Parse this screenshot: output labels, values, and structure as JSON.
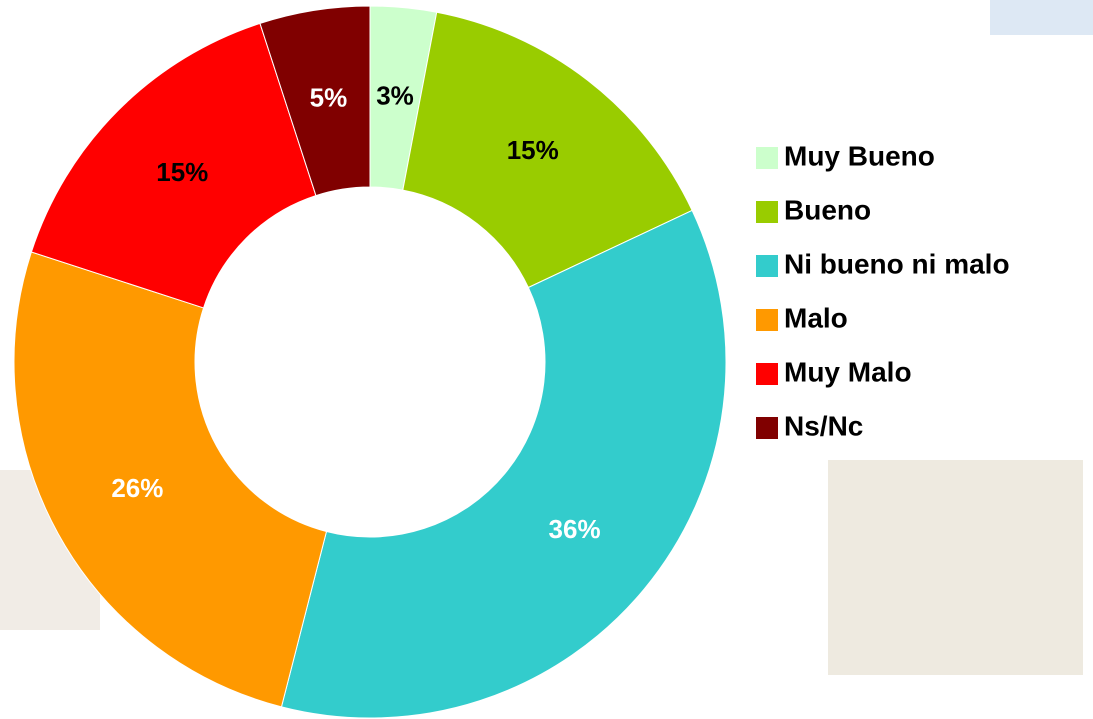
{
  "chart_data": {
    "type": "pie",
    "categories": [
      "Muy Bueno",
      "Bueno",
      "Ni bueno ni malo",
      "Malo",
      "Muy Malo",
      "Ns/Nc"
    ],
    "values": [
      3,
      15,
      36,
      26,
      15,
      5
    ],
    "value_labels": [
      "3%",
      "15%",
      "36%",
      "26%",
      "15%",
      "5%"
    ],
    "colors": [
      "#ccffcc",
      "#99cc00",
      "#33cccc",
      "#ff9900",
      "#ff0000",
      "#800000"
    ],
    "donut": true,
    "legend": "right"
  }
}
